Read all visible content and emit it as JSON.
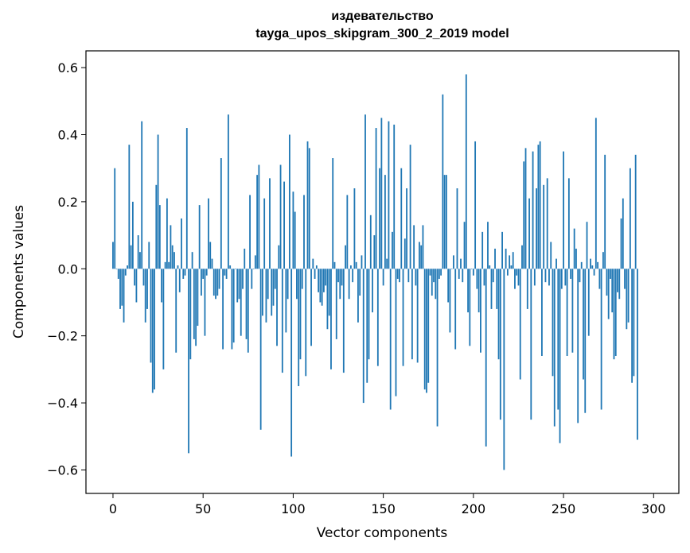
{
  "chart_data": {
    "type": "bar",
    "title": "издевательство",
    "subtitle": "tayga_upos_skipgram_300_2_2019 model",
    "xlabel": "Vector components",
    "ylabel": "Components values",
    "xlim": [
      -15,
      314
    ],
    "ylim": [
      -0.67,
      0.65
    ],
    "x_ticks": [
      0,
      50,
      100,
      150,
      200,
      250,
      300
    ],
    "y_ticks": [
      -0.6,
      -0.4,
      -0.2,
      0.0,
      0.2,
      0.4,
      0.6
    ],
    "y_tick_labels": [
      "−0.6",
      "−0.4",
      "−0.2",
      "0.0",
      "0.2",
      "0.4",
      "0.6"
    ],
    "bar_color": "#1f77b4",
    "grid": false,
    "values": [
      0.08,
      0.3,
      0.0,
      -0.03,
      -0.12,
      -0.11,
      -0.16,
      -0.02,
      0.01,
      0.37,
      0.07,
      0.2,
      -0.05,
      -0.1,
      0.1,
      0.05,
      0.44,
      -0.05,
      -0.16,
      -0.12,
      0.08,
      -0.28,
      -0.37,
      -0.36,
      0.25,
      0.4,
      0.19,
      -0.1,
      -0.3,
      0.02,
      0.21,
      0.02,
      0.13,
      0.07,
      0.05,
      -0.25,
      0.01,
      -0.07,
      0.15,
      -0.03,
      -0.02,
      0.42,
      -0.55,
      -0.27,
      0.05,
      -0.21,
      -0.23,
      -0.17,
      0.19,
      -0.08,
      -0.03,
      -0.2,
      -0.02,
      0.21,
      0.08,
      0.03,
      -0.08,
      -0.09,
      -0.08,
      -0.06,
      0.33,
      -0.24,
      -0.02,
      -0.03,
      0.46,
      0.01,
      -0.24,
      -0.22,
      0.0,
      -0.1,
      -0.09,
      -0.2,
      -0.06,
      0.06,
      -0.21,
      -0.25,
      0.22,
      -0.06,
      0.0,
      0.04,
      0.28,
      0.31,
      -0.48,
      -0.14,
      0.21,
      -0.16,
      -0.09,
      0.27,
      -0.14,
      -0.11,
      -0.06,
      -0.23,
      0.07,
      0.31,
      -0.31,
      0.26,
      -0.19,
      -0.09,
      0.4,
      -0.56,
      0.23,
      0.17,
      -0.09,
      -0.35,
      -0.27,
      -0.06,
      0.22,
      -0.32,
      0.38,
      0.36,
      -0.23,
      0.03,
      -0.03,
      0.01,
      -0.07,
      -0.1,
      -0.11,
      -0.07,
      -0.05,
      -0.18,
      -0.14,
      -0.3,
      0.33,
      0.02,
      -0.21,
      -0.04,
      -0.09,
      -0.05,
      -0.31,
      0.07,
      0.22,
      -0.09,
      0.01,
      -0.04,
      0.24,
      0.02,
      -0.16,
      -0.08,
      0.04,
      -0.4,
      0.46,
      -0.34,
      -0.27,
      0.16,
      -0.13,
      0.1,
      0.42,
      -0.29,
      0.3,
      0.45,
      -0.05,
      0.28,
      0.03,
      0.44,
      -0.42,
      0.11,
      0.43,
      -0.38,
      -0.03,
      -0.04,
      0.3,
      -0.29,
      0.09,
      0.24,
      -0.04,
      0.37,
      -0.27,
      0.13,
      -0.05,
      -0.28,
      0.08,
      0.07,
      0.13,
      -0.36,
      -0.37,
      -0.34,
      -0.02,
      -0.08,
      -0.04,
      -0.09,
      -0.47,
      -0.03,
      -0.02,
      0.52,
      0.28,
      0.28,
      -0.1,
      -0.19,
      0.0,
      0.04,
      -0.24,
      0.24,
      -0.03,
      0.03,
      -0.04,
      0.14,
      0.58,
      -0.13,
      -0.23,
      0.0,
      -0.02,
      0.38,
      -0.06,
      -0.13,
      -0.25,
      0.11,
      -0.05,
      -0.53,
      0.14,
      0.01,
      -0.12,
      -0.04,
      0.06,
      -0.12,
      -0.27,
      -0.45,
      0.11,
      -0.6,
      0.06,
      -0.02,
      0.04,
      0.01,
      0.05,
      -0.06,
      -0.02,
      -0.05,
      -0.33,
      0.07,
      0.32,
      0.36,
      -0.12,
      0.21,
      -0.45,
      0.35,
      -0.05,
      0.24,
      0.37,
      0.38,
      -0.26,
      0.25,
      -0.04,
      0.27,
      -0.05,
      0.08,
      -0.32,
      -0.47,
      0.03,
      -0.42,
      -0.52,
      -0.06,
      0.35,
      -0.05,
      -0.26,
      0.27,
      -0.03,
      -0.25,
      0.12,
      0.06,
      -0.46,
      -0.04,
      0.02,
      -0.33,
      -0.43,
      0.14,
      -0.2,
      0.03,
      0.01,
      -0.02,
      0.45,
      0.02,
      -0.06,
      -0.42,
      0.05,
      0.34,
      -0.08,
      -0.15,
      -0.03,
      -0.13,
      -0.27,
      -0.26,
      -0.07,
      -0.09,
      0.15,
      0.21,
      -0.06,
      -0.18,
      -0.16,
      0.3,
      -0.34,
      -0.32,
      0.34,
      -0.51
    ]
  }
}
